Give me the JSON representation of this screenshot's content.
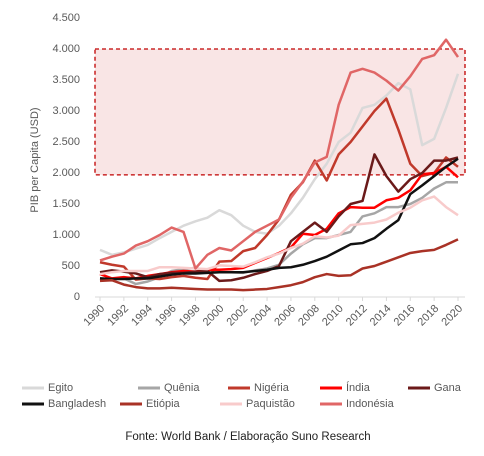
{
  "chart_data": {
    "type": "line",
    "ylabel": "PIB per Capita (USD)",
    "source": "Fonte: World Bank / Elaboração Suno Research",
    "x": [
      1990,
      1991,
      1992,
      1993,
      1994,
      1995,
      1996,
      1997,
      1998,
      1999,
      2000,
      2001,
      2002,
      2003,
      2004,
      2005,
      2006,
      2007,
      2008,
      2009,
      2010,
      2011,
      2012,
      2013,
      2014,
      2015,
      2016,
      2017,
      2018,
      2019,
      2020
    ],
    "xlim": [
      1990,
      2020
    ],
    "xticks": [
      1990,
      1992,
      1994,
      1996,
      1998,
      2000,
      2002,
      2004,
      2006,
      2008,
      2010,
      2012,
      2014,
      2016,
      2018,
      2020
    ],
    "ylim": [
      0,
      4500
    ],
    "yticks": [
      0,
      500,
      {
        "value": 1000,
        "label": "1.000"
      },
      {
        "value": 1500,
        "label": "1.500"
      },
      {
        "value": 2000,
        "label": "2.000"
      },
      {
        "value": 2500,
        "label": "2.500"
      },
      {
        "value": 3000,
        "label": "3.000"
      },
      {
        "value": 3500,
        "label": "3.500"
      },
      {
        "value": 4000,
        "label": "4.000"
      },
      {
        "value": 4500,
        "label": "4.500"
      }
    ],
    "highlight": {
      "range": [
        1970,
        4000
      ],
      "color": "#c00000"
    },
    "series": [
      {
        "name": "Egito",
        "color": "#d9d9d9",
        "values": [
          760,
          680,
          720,
          780,
          840,
          950,
          1050,
          1150,
          1220,
          1280,
          1400,
          1320,
          1150,
          1050,
          1020,
          1150,
          1350,
          1600,
          1900,
          2150,
          2500,
          2650,
          3050,
          3100,
          3250,
          3450,
          3350,
          2450,
          2550,
          3050,
          3600
        ]
      },
      {
        "name": "Quênia",
        "color": "#a6a6a6",
        "values": [
          300,
          290,
          300,
          210,
          250,
          320,
          420,
          450,
          470,
          420,
          400,
          400,
          390,
          430,
          460,
          520,
          700,
          850,
          950,
          950,
          1000,
          1050,
          1300,
          1350,
          1450,
          1450,
          1500,
          1600,
          1750,
          1850,
          1850
        ]
      },
      {
        "name": "Nigéria",
        "color": "#c0392b",
        "values": [
          560,
          520,
          490,
          280,
          300,
          290,
          320,
          340,
          310,
          290,
          570,
          580,
          740,
          790,
          1000,
          1250,
          1650,
          1850,
          2200,
          1880,
          2300,
          2500,
          2750,
          3000,
          3200,
          2700,
          2150,
          1950,
          2000,
          2250,
          2100
        ]
      },
      {
        "name": "Índia",
        "color": "#ff0000",
        "values": [
          370,
          300,
          320,
          300,
          340,
          370,
          400,
          420,
          410,
          440,
          440,
          450,
          470,
          550,
          630,
          710,
          800,
          1020,
          1000,
          1100,
          1350,
          1450,
          1440,
          1440,
          1560,
          1600,
          1720,
          1980,
          2000,
          2100,
          1930
        ]
      },
      {
        "name": "Gana",
        "color": "#6b1a1a",
        "values": [
          400,
          430,
          410,
          380,
          320,
          370,
          390,
          390,
          410,
          420,
          260,
          270,
          310,
          370,
          420,
          500,
          900,
          1050,
          1200,
          1050,
          1300,
          1500,
          1550,
          2300,
          1950,
          1700,
          1900,
          2000,
          2200,
          2200,
          2250
        ]
      },
      {
        "name": "Bangladesh",
        "color": "#111111",
        "values": [
          300,
          290,
          290,
          300,
          300,
          330,
          360,
          380,
          380,
          390,
          400,
          400,
          400,
          420,
          440,
          470,
          480,
          520,
          580,
          650,
          750,
          850,
          870,
          950,
          1100,
          1240,
          1660,
          1800,
          1950,
          2100,
          2230
        ]
      },
      {
        "name": "Etiópia",
        "color": "#a93226",
        "values": [
          260,
          270,
          200,
          160,
          140,
          140,
          150,
          140,
          130,
          120,
          120,
          120,
          110,
          120,
          130,
          160,
          190,
          240,
          320,
          370,
          340,
          350,
          460,
          500,
          570,
          640,
          710,
          740,
          760,
          840,
          930
        ]
      },
      {
        "name": "Paquistão",
        "color": "#f8cbcb",
        "values": [
          370,
          400,
          420,
          420,
          420,
          480,
          480,
          470,
          460,
          450,
          510,
          500,
          490,
          560,
          640,
          700,
          790,
          860,
          980,
          960,
          990,
          1160,
          1180,
          1200,
          1250,
          1360,
          1440,
          1560,
          1620,
          1450,
          1320
        ]
      },
      {
        "name": "Indonésia",
        "color": "#e06666",
        "values": [
          590,
          650,
          700,
          830,
          900,
          1000,
          1120,
          1050,
          460,
          680,
          790,
          750,
          900,
          1050,
          1150,
          1250,
          1600,
          1860,
          2170,
          2260,
          3100,
          3620,
          3680,
          3620,
          3490,
          3330,
          3560,
          3840,
          3900,
          4150,
          3870
        ]
      }
    ]
  }
}
